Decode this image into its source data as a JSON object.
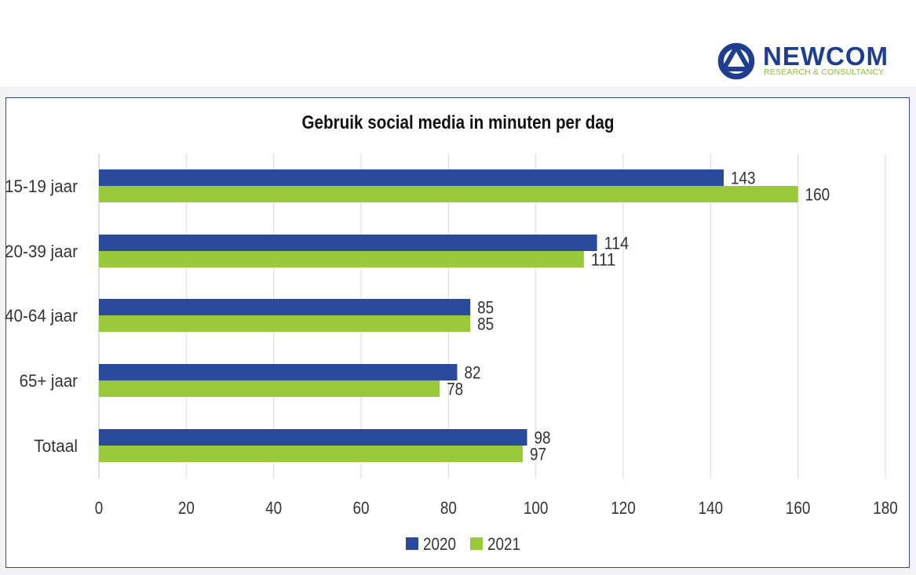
{
  "logo": {
    "name": "NEWCOM",
    "tagline": "RESEARCH & CONSULTANCY"
  },
  "colors": {
    "series_2020": "#2a4a9c",
    "series_2021": "#9bc93c",
    "frame": "#2f4a8c",
    "grid": "#d9d9d9"
  },
  "chart_data": {
    "type": "bar",
    "orientation": "horizontal",
    "title": "Gebruik social media in minuten per dag",
    "categories": [
      "15-19 jaar",
      "20-39 jaar",
      "40-64 jaar",
      "65+ jaar",
      "Totaal"
    ],
    "series": [
      {
        "name": "2020",
        "values": [
          143,
          114,
          85,
          82,
          98
        ]
      },
      {
        "name": "2021",
        "values": [
          160,
          111,
          85,
          78,
          97
        ]
      }
    ],
    "xlim": [
      0,
      180
    ],
    "xticks": [
      0,
      20,
      40,
      60,
      80,
      100,
      120,
      140,
      160,
      180
    ],
    "xlabel": "",
    "ylabel": "",
    "grid": true,
    "legend": "bottom-center"
  }
}
